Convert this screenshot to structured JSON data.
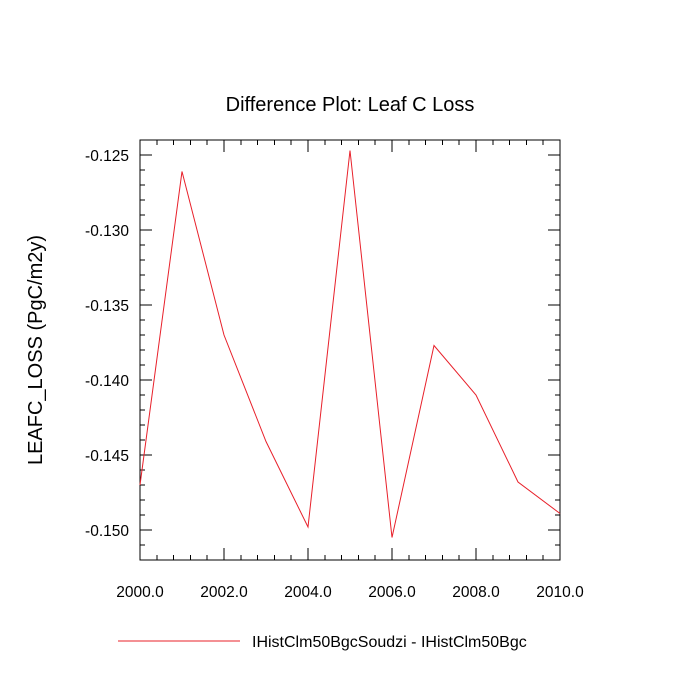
{
  "chart_data": {
    "type": "line",
    "title": "Difference Plot: Leaf C Loss",
    "xlabel": "",
    "ylabel": "LEAFC_LOSS  (PgC/m2y)",
    "xlim": [
      2000,
      2010
    ],
    "ylim": [
      -0.152,
      -0.124
    ],
    "x_major_ticks": [
      2000,
      2002,
      2004,
      2006,
      2008,
      2010
    ],
    "x_tick_labels": [
      "2000.0",
      "2002.0",
      "2004.0",
      "2006.0",
      "2008.0",
      "2010.0"
    ],
    "y_major_ticks": [
      -0.125,
      -0.13,
      -0.135,
      -0.14,
      -0.145,
      -0.15
    ],
    "y_tick_labels": [
      "-0.125",
      "-0.130",
      "-0.135",
      "-0.140",
      "-0.145",
      "-0.150"
    ],
    "grid": false,
    "legend_position": "bottom-center",
    "series": [
      {
        "name": "IHistClm50BgcSoudzi - IHistClm50Bgc",
        "color": "#e8202a",
        "x": [
          2000,
          2001,
          2002,
          2003,
          2004,
          2005,
          2006,
          2007,
          2008,
          2009,
          2010
        ],
        "y": [
          -0.147,
          -0.1261,
          -0.137,
          -0.1441,
          -0.1498,
          -0.1247,
          -0.1505,
          -0.1377,
          -0.141,
          -0.1468,
          -0.1489
        ]
      }
    ]
  }
}
